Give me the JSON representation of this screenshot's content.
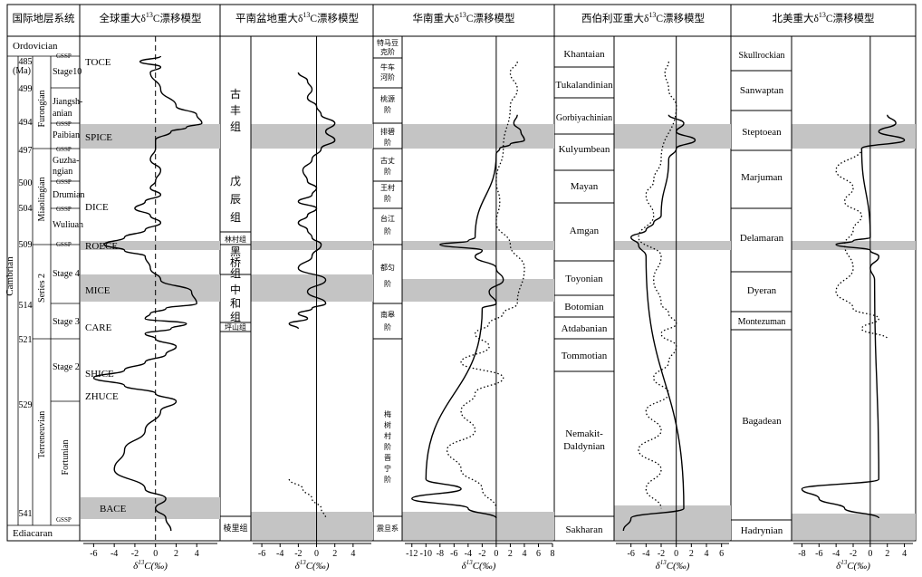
{
  "headers": {
    "col1": "国际地层系统",
    "col2": "全球重大δ13C漂移模型",
    "col3": "平南盆地重大δ13C漂移模型",
    "col4": "华南重大δ13C漂移模型",
    "col5": "西伯利亚重大δ13C漂移模型",
    "col6": "北美重大δ13C漂移模型"
  },
  "strat": {
    "ordovician": "Ordovician",
    "ediacaran": "Ediacaran",
    "cambrian": "Cambrian",
    "ma_label": "(Ma)",
    "gssp": "GSSP",
    "series": [
      "Furongian",
      "Miaolingian",
      "Series 2",
      "Terreneuvian"
    ],
    "stages": [
      "Stage10",
      "Jiangsh-",
      "anian",
      "Paibian",
      "Guzha-",
      "ngian",
      "Drumian",
      "Wuliuan",
      "Stage 4",
      "Stage 3",
      "Stage 2",
      "Fortunian"
    ],
    "ages": [
      "485",
      "499",
      "494",
      "497",
      "500",
      "504",
      "509",
      "514",
      "521",
      "529",
      "541"
    ]
  },
  "events": [
    "TOCE",
    "SPICE",
    "DICE",
    "ROECE",
    "MICE",
    "CARE",
    "SHICE",
    "ZHUCE",
    "BACE"
  ],
  "pingnan_units": [
    "古",
    "丰",
    "组",
    "戊",
    "辰",
    "组",
    "林村组",
    "黑",
    "桥",
    "组",
    "中",
    "和",
    "组",
    "坪山组",
    "棱里组"
  ],
  "south_china_units": [
    "特马豆",
    "克阶",
    "牛车",
    "河阶",
    "桃源",
    "阶",
    "排碧",
    "阶",
    "古丈",
    "阶",
    "王村",
    "阶",
    "台江",
    "阶",
    "都匀",
    "阶",
    "南皋",
    "阶",
    "梅",
    "树",
    "村",
    "阶",
    "晋",
    "宁",
    "阶",
    "震旦系"
  ],
  "siberia_units": [
    "Khantaian",
    "Tukalandinian",
    "Gorbiyachinian",
    "Kulyumbean",
    "Mayan",
    "Amgan",
    "Toyonian",
    "Botomian",
    "Atdabanian",
    "Tommotian",
    "Nemakit-",
    "Daldynian",
    "Sakharan"
  ],
  "na_units": [
    "Skullrockian",
    "Sanwaptan",
    "Steptoean",
    "Marjuman",
    "Delamaran",
    "Dyeran",
    "Montezuman",
    "Bagadean",
    "Hadrynian"
  ],
  "xaxis_label": "δ13C(‰)",
  "chart_data": [
    {
      "type": "line",
      "title": "全球重大δ13C漂移模型",
      "xlabel": "δ13C(‰)",
      "xticks": [
        -6,
        -4,
        -2,
        0,
        2,
        4
      ],
      "xlim": [
        -7,
        6
      ],
      "zero_line": "dashed",
      "y": [
        485,
        486,
        487,
        488,
        490,
        492,
        493,
        494,
        494.5,
        495,
        496,
        497,
        498,
        499,
        500,
        501,
        502,
        503,
        504,
        505,
        506,
        507,
        508,
        509,
        509.5,
        510,
        511,
        512,
        513,
        514,
        515,
        516,
        517,
        518,
        519,
        520,
        521,
        522,
        523,
        524,
        525,
        526,
        527,
        528,
        529,
        530,
        532,
        534,
        536,
        538,
        539,
        540,
        541,
        542
      ],
      "x": [
        0.5,
        -1.5,
        0.5,
        -0.5,
        0.5,
        2,
        4,
        4.5,
        3,
        1.5,
        0,
        0,
        -0.5,
        0.5,
        0,
        -0.5,
        0.5,
        -1,
        -2,
        -0.5,
        0.5,
        -1,
        -3,
        -5,
        -3,
        -1,
        -0.5,
        0.5,
        3.5,
        4,
        1,
        -0.5,
        -1,
        3,
        1.5,
        -1,
        0,
        2,
        1,
        -1,
        -3,
        -6,
        -3,
        0,
        2,
        0.5,
        -1,
        -3,
        -4,
        -1,
        1,
        0,
        1,
        1.5
      ]
    },
    {
      "type": "line",
      "title": "平南盆地重大δ13C漂移模型",
      "xlabel": "δ13C(‰)",
      "xticks": [
        -6,
        -4,
        -2,
        0,
        2,
        4
      ],
      "xlim": [
        -7,
        6
      ],
      "series": [
        {
          "style": "solid",
          "y": [
            488,
            489,
            490,
            491,
            492,
            493,
            494,
            495,
            496,
            497,
            498,
            499,
            500,
            501,
            502,
            503,
            504,
            505,
            506,
            507,
            508,
            509,
            510,
            511,
            512,
            513,
            514,
            515,
            516,
            517,
            518,
            519
          ],
          "x": [
            -2,
            -1,
            -0.5,
            -1,
            0,
            0.5,
            2,
            1,
            2,
            0.5,
            -0.5,
            -1.5,
            -1,
            0,
            -0.5,
            -2,
            0,
            -1,
            -2,
            -1,
            -0.5,
            0.5,
            -0.5,
            -2,
            1,
            -1,
            1,
            -0.5,
            -2,
            -1,
            -3,
            -2
          ]
        },
        {
          "style": "dotted",
          "y": [
            537,
            538,
            539,
            540,
            541
          ],
          "x": [
            -3,
            -1.5,
            -0.5,
            0.5,
            1
          ]
        }
      ]
    },
    {
      "type": "line",
      "title": "华南重大δ13C漂移模型",
      "xlabel": "δ13C(‰)",
      "xticks": [
        -12,
        -10,
        -8,
        -6,
        -4,
        -2,
        0,
        2,
        4,
        6,
        8
      ],
      "xlim": [
        -13,
        8
      ],
      "series": [
        {
          "style": "solid",
          "y": [
            493,
            494,
            495,
            496,
            496.5,
            497,
            497.5,
            508,
            508.5,
            509,
            509.5,
            510,
            511,
            512,
            513,
            514,
            515,
            537,
            538,
            539,
            540,
            541
          ],
          "x": [
            3,
            2.5,
            3.5,
            4,
            2,
            0.5,
            0,
            -3,
            -4,
            -8,
            -2,
            -3,
            0,
            1,
            -1,
            0,
            -2,
            -10,
            -5,
            -12,
            -4,
            0
          ]
        },
        {
          "style": "dotted",
          "y": [
            486,
            488,
            490,
            492,
            497,
            500,
            503,
            506,
            509,
            511,
            514,
            516,
            518,
            520,
            522,
            524,
            526,
            528,
            530,
            532,
            534,
            536,
            538,
            540
          ],
          "x": [
            3,
            2,
            3,
            2,
            1,
            0,
            0.5,
            0,
            2,
            4,
            3,
            1,
            -1,
            -3,
            -1,
            -5,
            1,
            -3,
            -5,
            -3,
            -7,
            -5,
            -2,
            0
          ]
        }
      ]
    },
    {
      "type": "line",
      "title": "西伯利亚重大δ13C漂移模型",
      "xlabel": "δ13C(‰)",
      "xticks": [
        -6,
        -4,
        -2,
        0,
        2,
        4,
        6
      ],
      "xlim": [
        -8,
        7
      ],
      "series": [
        {
          "style": "solid",
          "y": [
            493,
            494,
            495,
            496,
            497,
            498,
            505,
            506,
            507,
            508,
            509,
            510,
            540,
            541,
            542
          ],
          "x": [
            -1,
            1,
            0,
            2.5,
            0,
            -1,
            -2,
            -3,
            -4,
            -6,
            -5,
            -4,
            1,
            -6,
            -7
          ]
        },
        {
          "style": "dotted",
          "y": [
            486,
            488,
            490,
            492,
            498,
            500,
            502,
            505,
            508,
            510,
            512,
            514,
            516,
            518,
            520,
            522,
            524,
            526,
            528,
            530,
            532,
            534,
            536,
            538,
            540
          ],
          "x": [
            -1,
            -1.5,
            -1,
            0,
            -2,
            -3,
            -4,
            -3,
            -5,
            -2,
            -3,
            -2,
            -1,
            0,
            -2,
            0,
            -1,
            -3,
            -1,
            -4,
            -2,
            -5,
            -2,
            -4,
            -2
          ]
        }
      ]
    },
    {
      "type": "line",
      "title": "北美重大δ13C漂移模型",
      "xlabel": "δ13C(‰)",
      "xticks": [
        -8,
        -6,
        -4,
        -2,
        0,
        2,
        4
      ],
      "xlim": [
        -9,
        5
      ],
      "series": [
        {
          "style": "solid",
          "y": [
            493,
            494,
            495,
            496,
            497,
            508,
            508.5,
            509,
            509.5,
            510,
            511,
            512,
            537,
            538,
            539,
            540,
            541
          ],
          "x": [
            2,
            3,
            1,
            4,
            -1,
            0,
            -2,
            -4,
            0,
            1,
            0,
            0.5,
            1,
            -8,
            -6,
            -3,
            1
          ]
        },
        {
          "style": "dotted",
          "y": [
            497,
            499,
            501,
            503,
            505,
            507,
            509,
            511,
            513,
            515,
            517,
            519,
            521
          ],
          "x": [
            -1,
            -4,
            -2,
            -3,
            -1,
            -2,
            -3,
            -2,
            -4,
            -2,
            1,
            -1,
            2
          ]
        }
      ]
    }
  ]
}
